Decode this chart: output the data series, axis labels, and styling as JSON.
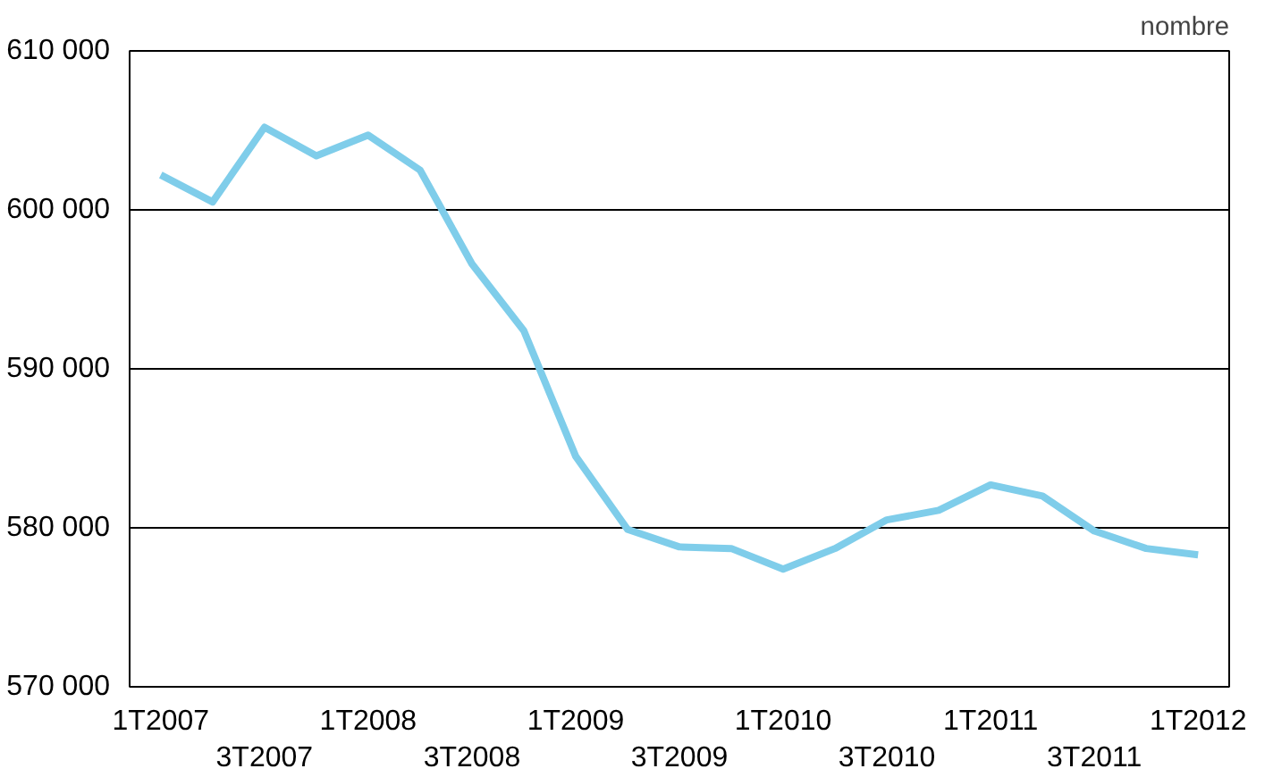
{
  "chart_data": {
    "type": "line",
    "ylabel": "nombre",
    "categories": [
      "1T2007",
      null,
      "3T2007",
      null,
      "1T2008",
      null,
      "3T2008",
      null,
      "1T2009",
      null,
      "3T2009",
      null,
      "1T2010",
      null,
      "3T2010",
      null,
      "1T2011",
      null,
      "3T2011",
      null,
      "1T2012"
    ],
    "series": [
      {
        "color": "#7fcdea",
        "values": [
          602200,
          600500,
          605200,
          603400,
          604700,
          602500,
          596600,
          592400,
          584500,
          579900,
          578800,
          578700,
          577400,
          578700,
          580500,
          581100,
          582700,
          582000,
          579800,
          578700,
          578300
        ]
      }
    ],
    "ylim": [
      570000,
      610000
    ],
    "yticks": [
      {
        "value": 570000,
        "label": "570 000"
      },
      {
        "value": 580000,
        "label": "580 000"
      },
      {
        "value": 590000,
        "label": "590 000"
      },
      {
        "value": 600000,
        "label": "600 000"
      },
      {
        "value": 610000,
        "label": "610 000"
      }
    ],
    "grid": "y",
    "marker": "none",
    "line_style": "solid"
  }
}
